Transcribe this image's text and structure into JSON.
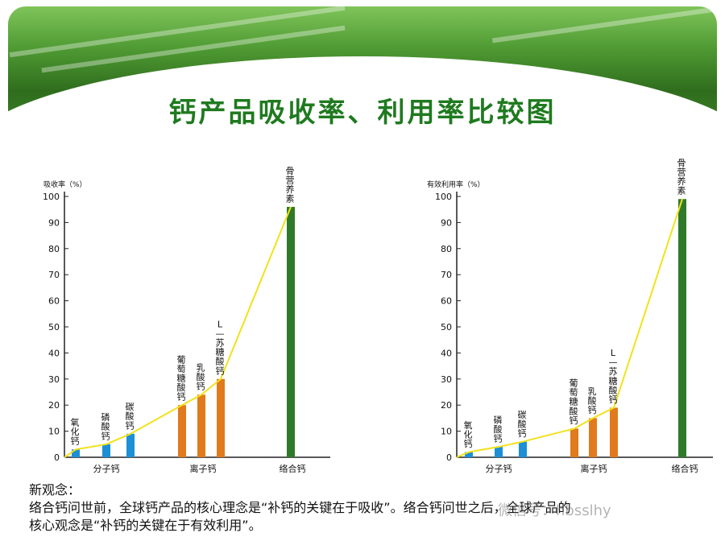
{
  "slide": {
    "title": "钙产品吸收率、利用率比较图"
  },
  "colors": {
    "blue": "#1d8fd6",
    "orange": "#e07a1c",
    "green": "#2f7a2a",
    "curve": "#f2e21b"
  },
  "chart_data": [
    {
      "type": "bar",
      "ylabel": "吸收率（%）",
      "ylim": [
        0,
        100
      ],
      "yticks": [
        0,
        10,
        20,
        30,
        40,
        50,
        60,
        70,
        80,
        90,
        100
      ],
      "group_labels": [
        "分子钙",
        "离子钙",
        "络合钙"
      ],
      "categories": [
        "氧化钙",
        "磷酸钙",
        "碳酸钙",
        "葡萄糖酸钙",
        "乳酸钙",
        "L—苏糖酸钙",
        "骨营养素"
      ],
      "groups": [
        "分子钙",
        "分子钙",
        "分子钙",
        "离子钙",
        "离子钙",
        "离子钙",
        "络合钙"
      ],
      "values": [
        3,
        5,
        9,
        20,
        24,
        30,
        96
      ],
      "colors": [
        "blue",
        "blue",
        "blue",
        "orange",
        "orange",
        "orange",
        "green"
      ],
      "curve": true
    },
    {
      "type": "bar",
      "ylabel": "有效利用率（%）",
      "ylim": [
        0,
        100
      ],
      "yticks": [
        0,
        10,
        20,
        30,
        40,
        50,
        60,
        70,
        80,
        90,
        100
      ],
      "group_labels": [
        "分子钙",
        "离子钙",
        "络合钙"
      ],
      "categories": [
        "氧化钙",
        "磷酸钙",
        "碳酸钙",
        "葡萄糖酸钙",
        "乳酸钙",
        "L—苏糖酸钙",
        "骨营养素"
      ],
      "groups": [
        "分子钙",
        "分子钙",
        "分子钙",
        "离子钙",
        "离子钙",
        "离子钙",
        "络合钙"
      ],
      "values": [
        2,
        4,
        6,
        11,
        15,
        19,
        99
      ],
      "colors": [
        "blue",
        "blue",
        "blue",
        "orange",
        "orange",
        "orange",
        "green"
      ],
      "curve": true
    }
  ],
  "footer": {
    "heading": "新观念：",
    "line1": "络合钙问世前，全球钙产品的核心理念是“补钙的关键在于吸收”。络合钙问世之后，全球产品的",
    "line2": "核心观念是“补钙的关键在于有效利用”。"
  },
  "watermark": {
    "text": "微信号：hbsslhy"
  }
}
